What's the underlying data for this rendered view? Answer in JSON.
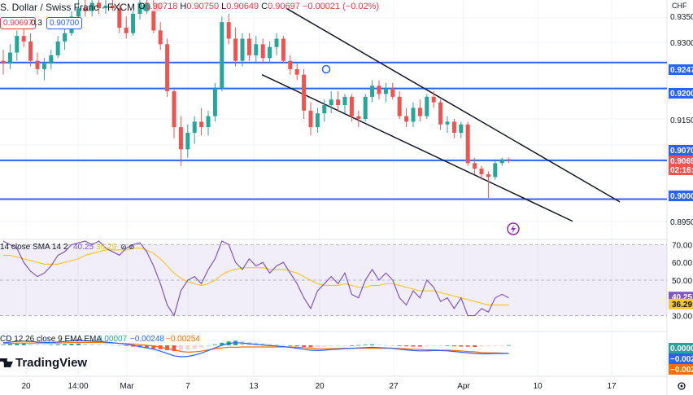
{
  "header": {
    "title": "S. Dollar / Swiss Franc · FXCM",
    "ohlc": [
      {
        "k": "O",
        "v": "0.90718"
      },
      {
        "k": "H",
        "v": "0.90750"
      },
      {
        "k": "L",
        "v": "0.90649"
      },
      {
        "k": "C",
        "v": "0.90697"
      }
    ],
    "change": "−0.00021 (−0.02%)",
    "bid": "0.90697",
    "spread": "0.3",
    "ask": "0.90700"
  },
  "currency": "CHF",
  "logo_text": "TradingView",
  "colors": {
    "up": "#26a69a",
    "down": "#ef5350",
    "level_line": "#2962ff",
    "channel": "#131722",
    "rsi": "#7e57c2",
    "rsi_ma": "#f6c82d",
    "macd": "#2962ff",
    "signal": "#ff6d00"
  },
  "chart_data": [
    {
      "type": "candlestick",
      "name": "main",
      "x_ticks": [
        "20",
        "14:00",
        "Mar",
        "7",
        "13",
        "20",
        "27",
        "Apr",
        "10",
        "17"
      ],
      "y_ticks": [
        "0.9350",
        "0.9300",
        "0.9150",
        "0.8950"
      ],
      "ylim": [
        0.893,
        0.936
      ],
      "horizontal_levels": [
        0.907,
        0.9,
        0.92,
        0.9247
      ],
      "price_labels": [
        {
          "text": "0.9247",
          "kind": "level"
        },
        {
          "text": "0.9200",
          "kind": "level"
        },
        {
          "text": "0.9070",
          "kind": "level"
        },
        {
          "text": "0.90697",
          "kind": "current"
        },
        {
          "text": "02:16:",
          "kind": "countdown"
        },
        {
          "text": "0.9000",
          "kind": "level"
        }
      ],
      "channel_upper": [
        [
          0.9345,
          0.9365
        ],
        [
          0.9015,
          0.8995
        ]
      ],
      "channel_lower": [
        [
          0.9225,
          0.924
        ],
        [
          0.9,
          0.896
        ]
      ],
      "ohlc": [
        {
          "o": 0.925,
          "h": 0.927,
          "l": 0.9225,
          "c": 0.9245
        },
        {
          "o": 0.9245,
          "h": 0.928,
          "l": 0.9235,
          "c": 0.9265
        },
        {
          "o": 0.9265,
          "h": 0.9305,
          "l": 0.925,
          "c": 0.9295
        },
        {
          "o": 0.9295,
          "h": 0.933,
          "l": 0.9275,
          "c": 0.9285
        },
        {
          "o": 0.9285,
          "h": 0.93,
          "l": 0.924,
          "c": 0.925
        },
        {
          "o": 0.925,
          "h": 0.9265,
          "l": 0.9225,
          "c": 0.9235
        },
        {
          "o": 0.9235,
          "h": 0.9255,
          "l": 0.9215,
          "c": 0.9245
        },
        {
          "o": 0.9245,
          "h": 0.927,
          "l": 0.9235,
          "c": 0.926
        },
        {
          "o": 0.926,
          "h": 0.9295,
          "l": 0.9255,
          "c": 0.9285
        },
        {
          "o": 0.9285,
          "h": 0.931,
          "l": 0.927,
          "c": 0.93
        },
        {
          "o": 0.93,
          "h": 0.934,
          "l": 0.9295,
          "c": 0.933
        },
        {
          "o": 0.933,
          "h": 0.936,
          "l": 0.932,
          "c": 0.9345
        },
        {
          "o": 0.9345,
          "h": 0.936,
          "l": 0.933,
          "c": 0.934
        },
        {
          "o": 0.934,
          "h": 0.9365,
          "l": 0.933,
          "c": 0.9355
        },
        {
          "o": 0.9355,
          "h": 0.9365,
          "l": 0.9335,
          "c": 0.9345
        },
        {
          "o": 0.9345,
          "h": 0.9365,
          "l": 0.9335,
          "c": 0.935
        },
        {
          "o": 0.935,
          "h": 0.9365,
          "l": 0.934,
          "c": 0.9345
        },
        {
          "o": 0.9345,
          "h": 0.9355,
          "l": 0.93,
          "c": 0.931
        },
        {
          "o": 0.931,
          "h": 0.933,
          "l": 0.929,
          "c": 0.93
        },
        {
          "o": 0.93,
          "h": 0.934,
          "l": 0.9295,
          "c": 0.9335
        },
        {
          "o": 0.9335,
          "h": 0.9365,
          "l": 0.9325,
          "c": 0.9355
        },
        {
          "o": 0.9355,
          "h": 0.9365,
          "l": 0.9335,
          "c": 0.934
        },
        {
          "o": 0.934,
          "h": 0.936,
          "l": 0.93,
          "c": 0.9305
        },
        {
          "o": 0.9305,
          "h": 0.932,
          "l": 0.927,
          "c": 0.928
        },
        {
          "o": 0.928,
          "h": 0.929,
          "l": 0.9185,
          "c": 0.9195
        },
        {
          "o": 0.9195,
          "h": 0.92,
          "l": 0.911,
          "c": 0.913
        },
        {
          "o": 0.913,
          "h": 0.915,
          "l": 0.906,
          "c": 0.909
        },
        {
          "o": 0.909,
          "h": 0.9135,
          "l": 0.9075,
          "c": 0.912
        },
        {
          "o": 0.912,
          "h": 0.915,
          "l": 0.91,
          "c": 0.914
        },
        {
          "o": 0.914,
          "h": 0.9165,
          "l": 0.9115,
          "c": 0.913
        },
        {
          "o": 0.913,
          "h": 0.916,
          "l": 0.9115,
          "c": 0.915
        },
        {
          "o": 0.915,
          "h": 0.921,
          "l": 0.914,
          "c": 0.92
        },
        {
          "o": 0.92,
          "h": 0.933,
          "l": 0.9195,
          "c": 0.932
        },
        {
          "o": 0.932,
          "h": 0.9335,
          "l": 0.928,
          "c": 0.929
        },
        {
          "o": 0.929,
          "h": 0.931,
          "l": 0.924,
          "c": 0.925
        },
        {
          "o": 0.925,
          "h": 0.93,
          "l": 0.924,
          "c": 0.929
        },
        {
          "o": 0.929,
          "h": 0.93,
          "l": 0.925,
          "c": 0.926
        },
        {
          "o": 0.926,
          "h": 0.9295,
          "l": 0.9245,
          "c": 0.928
        },
        {
          "o": 0.928,
          "h": 0.929,
          "l": 0.9245,
          "c": 0.9255
        },
        {
          "o": 0.9255,
          "h": 0.9285,
          "l": 0.9245,
          "c": 0.9275
        },
        {
          "o": 0.9275,
          "h": 0.93,
          "l": 0.926,
          "c": 0.929
        },
        {
          "o": 0.929,
          "h": 0.9295,
          "l": 0.9245,
          "c": 0.925
        },
        {
          "o": 0.925,
          "h": 0.926,
          "l": 0.9225,
          "c": 0.9235
        },
        {
          "o": 0.9235,
          "h": 0.9245,
          "l": 0.9215,
          "c": 0.9225
        },
        {
          "o": 0.9225,
          "h": 0.9235,
          "l": 0.9145,
          "c": 0.916
        },
        {
          "o": 0.916,
          "h": 0.9175,
          "l": 0.9115,
          "c": 0.913
        },
        {
          "o": 0.913,
          "h": 0.9165,
          "l": 0.912,
          "c": 0.9155
        },
        {
          "o": 0.9155,
          "h": 0.918,
          "l": 0.914,
          "c": 0.917
        },
        {
          "o": 0.917,
          "h": 0.9195,
          "l": 0.9155,
          "c": 0.918
        },
        {
          "o": 0.918,
          "h": 0.9195,
          "l": 0.916,
          "c": 0.917
        },
        {
          "o": 0.917,
          "h": 0.919,
          "l": 0.9155,
          "c": 0.9185
        },
        {
          "o": 0.9185,
          "h": 0.919,
          "l": 0.914,
          "c": 0.915
        },
        {
          "o": 0.915,
          "h": 0.916,
          "l": 0.913,
          "c": 0.9145
        },
        {
          "o": 0.9145,
          "h": 0.919,
          "l": 0.914,
          "c": 0.9185
        },
        {
          "o": 0.9185,
          "h": 0.9215,
          "l": 0.9175,
          "c": 0.9205
        },
        {
          "o": 0.9205,
          "h": 0.9215,
          "l": 0.918,
          "c": 0.919
        },
        {
          "o": 0.919,
          "h": 0.921,
          "l": 0.9175,
          "c": 0.92
        },
        {
          "o": 0.92,
          "h": 0.921,
          "l": 0.918,
          "c": 0.9185
        },
        {
          "o": 0.9185,
          "h": 0.9195,
          "l": 0.9145,
          "c": 0.915
        },
        {
          "o": 0.915,
          "h": 0.9165,
          "l": 0.913,
          "c": 0.914
        },
        {
          "o": 0.914,
          "h": 0.9175,
          "l": 0.913,
          "c": 0.9165
        },
        {
          "o": 0.9165,
          "h": 0.918,
          "l": 0.914,
          "c": 0.915
        },
        {
          "o": 0.915,
          "h": 0.919,
          "l": 0.9145,
          "c": 0.9185
        },
        {
          "o": 0.9185,
          "h": 0.9195,
          "l": 0.9165,
          "c": 0.9175
        },
        {
          "o": 0.9175,
          "h": 0.918,
          "l": 0.9125,
          "c": 0.9135
        },
        {
          "o": 0.9135,
          "h": 0.915,
          "l": 0.912,
          "c": 0.914
        },
        {
          "o": 0.914,
          "h": 0.9145,
          "l": 0.911,
          "c": 0.912
        },
        {
          "o": 0.912,
          "h": 0.914,
          "l": 0.911,
          "c": 0.9135
        },
        {
          "o": 0.9135,
          "h": 0.914,
          "l": 0.906,
          "c": 0.9065
        },
        {
          "o": 0.9065,
          "h": 0.9075,
          "l": 0.9045,
          "c": 0.9055
        },
        {
          "o": 0.9055,
          "h": 0.906,
          "l": 0.9035,
          "c": 0.9045
        },
        {
          "o": 0.9045,
          "h": 0.905,
          "l": 0.9002,
          "c": 0.904
        },
        {
          "o": 0.904,
          "h": 0.907,
          "l": 0.9035,
          "c": 0.9065
        },
        {
          "o": 0.9065,
          "h": 0.9075,
          "l": 0.906,
          "c": 0.9072
        },
        {
          "o": 0.9072,
          "h": 0.9075,
          "l": 0.9065,
          "c": 0.907
        }
      ]
    },
    {
      "type": "line",
      "name": "rsi",
      "label": "14 close SMA 14 2",
      "values_shown": [
        "40.25",
        "36.29"
      ],
      "value_colors": [
        "#7e57c2",
        "#f6c82d"
      ],
      "y_ticks": [
        "70.00",
        "60.00",
        "50.00",
        "30.00"
      ],
      "ylim": [
        22,
        72
      ],
      "series": [
        {
          "name": "RSI",
          "values": [
            72,
            70,
            68,
            60,
            55,
            52,
            54,
            58,
            64,
            66,
            70,
            71,
            72,
            70,
            72,
            68,
            66,
            64,
            68,
            70,
            71,
            66,
            58,
            48,
            36,
            30,
            44,
            50,
            52,
            48,
            56,
            62,
            72,
            70,
            60,
            56,
            62,
            58,
            60,
            54,
            58,
            60,
            54,
            48,
            40,
            34,
            44,
            48,
            52,
            48,
            54,
            42,
            40,
            50,
            56,
            50,
            54,
            50,
            40,
            36,
            44,
            40,
            50,
            46,
            38,
            40,
            34,
            40,
            30,
            30,
            34,
            32,
            40,
            42,
            40
          ]
        },
        {
          "name": "SMA",
          "values": [
            64,
            64,
            63,
            62,
            61,
            60,
            59,
            59,
            59,
            60,
            61,
            62,
            64,
            65,
            66,
            67,
            67,
            67,
            67,
            68,
            68,
            67,
            65,
            62,
            58,
            54,
            51,
            49,
            48,
            47,
            48,
            50,
            53,
            55,
            56,
            57,
            57,
            57,
            57,
            56,
            56,
            56,
            55,
            54,
            52,
            50,
            48,
            47,
            47,
            47,
            48,
            47,
            46,
            46,
            47,
            47,
            48,
            48,
            47,
            46,
            45,
            44,
            44,
            44,
            43,
            42,
            41,
            40,
            39,
            38,
            37,
            36,
            36,
            36,
            36
          ]
        }
      ]
    },
    {
      "type": "bar+line",
      "name": "macd",
      "label": "CD 12 26 close 9 EMA EMA",
      "values_shown": [
        "0.00007",
        "−0.00248",
        "−0.00254"
      ],
      "value_colors": [
        "#26a69a",
        "#2962ff",
        "#ff6d00"
      ],
      "axis_labels": [
        "0.0000",
        "−0.002",
        "−0.002"
      ],
      "ylim": [
        -0.0085,
        0.004
      ],
      "histogram": [
        0.0002,
        0.0004,
        0.0005,
        0.0006,
        0.0005,
        0.0003,
        0.0002,
        0.0002,
        0.0003,
        0.0004,
        0.0005,
        0.0006,
        0.0005,
        0.0004,
        0.0003,
        0.0002,
        0.0001,
        0.0,
        -0.0002,
        -0.0004,
        -0.0006,
        -0.0008,
        -0.001,
        -0.0012,
        -0.0015,
        -0.0018,
        -0.0016,
        -0.0013,
        -0.001,
        -0.0006,
        -0.0002,
        0.0002,
        0.0008,
        0.0012,
        0.0014,
        0.0012,
        0.001,
        0.0008,
        0.0006,
        0.0004,
        0.0003,
        0.0001,
        -0.0001,
        -0.0003,
        -0.0005,
        -0.0006,
        -0.0005,
        -0.0004,
        -0.0003,
        -0.0002,
        -0.0001,
        0.0,
        0.0001,
        0.0002,
        0.0003,
        0.0002,
        0.0001,
        0.0,
        -0.0002,
        -0.0003,
        -0.0004,
        -0.0004,
        -0.0003,
        -0.0002,
        -0.0001,
        -0.0002,
        -0.0003,
        -0.0004,
        -0.0004,
        -0.0005,
        -0.0004,
        -0.0003,
        -0.0002,
        -0.0001,
        7e-05
      ],
      "series": [
        {
          "name": "MACD",
          "values": [
            0.0008,
            0.001,
            0.0012,
            0.0013,
            0.0012,
            0.001,
            0.0009,
            0.0009,
            0.001,
            0.0012,
            0.0014,
            0.0015,
            0.0014,
            0.0013,
            0.0012,
            0.001,
            0.0008,
            0.0006,
            0.0003,
            0.0,
            -0.0004,
            -0.0008,
            -0.0012,
            -0.0018,
            -0.0025,
            -0.0032,
            -0.0035,
            -0.0034,
            -0.003,
            -0.0024,
            -0.0016,
            -0.0008,
            0.0,
            0.0006,
            0.0008,
            0.0007,
            0.0005,
            0.0003,
            0.0001,
            -0.0001,
            -0.0002,
            -0.0004,
            -0.0006,
            -0.0009,
            -0.0012,
            -0.0015,
            -0.0016,
            -0.0015,
            -0.0013,
            -0.0012,
            -0.001,
            -0.0009,
            -0.0008,
            -0.0007,
            -0.0006,
            -0.0007,
            -0.0008,
            -0.0009,
            -0.0012,
            -0.0014,
            -0.0016,
            -0.0017,
            -0.0017,
            -0.0016,
            -0.0016,
            -0.0017,
            -0.0019,
            -0.0021,
            -0.0023,
            -0.0025,
            -0.0026,
            -0.0026,
            -0.0025,
            -0.0025,
            -0.00248
          ]
        },
        {
          "name": "Signal",
          "values": [
            0.0006,
            0.0006,
            0.0007,
            0.0007,
            0.0007,
            0.0007,
            0.0007,
            0.0007,
            0.0007,
            0.0008,
            0.0009,
            0.0009,
            0.0009,
            0.0009,
            0.0009,
            0.0008,
            0.0007,
            0.0006,
            0.0005,
            0.0004,
            0.0002,
            0.0,
            -0.0002,
            -0.0006,
            -0.001,
            -0.0014,
            -0.0019,
            -0.0021,
            -0.002,
            -0.0018,
            -0.0014,
            -0.001,
            -0.0008,
            -0.0006,
            -0.0006,
            -0.0005,
            -0.0005,
            -0.0005,
            -0.0005,
            -0.0005,
            -0.0005,
            -0.0005,
            -0.0005,
            -0.0006,
            -0.0007,
            -0.0009,
            -0.0011,
            -0.0011,
            -0.001,
            -0.001,
            -0.0009,
            -0.0009,
            -0.0009,
            -0.0009,
            -0.0009,
            -0.0009,
            -0.0009,
            -0.0009,
            -0.001,
            -0.0011,
            -0.0012,
            -0.0013,
            -0.0014,
            -0.0014,
            -0.0015,
            -0.0015,
            -0.0016,
            -0.0017,
            -0.0019,
            -0.002,
            -0.0022,
            -0.0023,
            -0.0023,
            -0.0024,
            -0.00254
          ]
        }
      ]
    }
  ]
}
